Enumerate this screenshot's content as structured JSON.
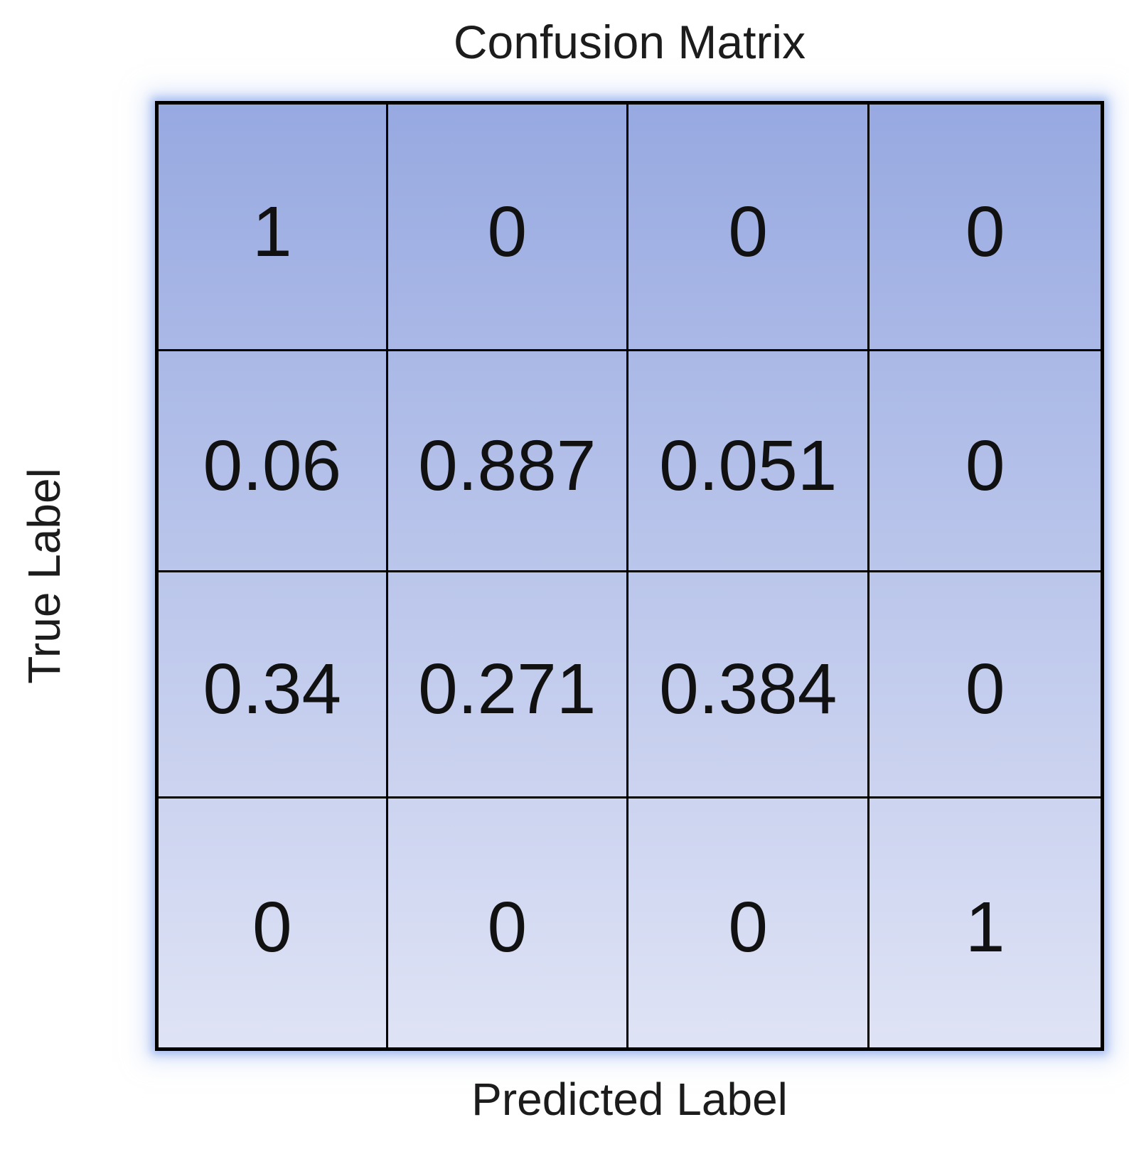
{
  "chart_data": {
    "type": "heatmap",
    "title": "Confusion Matrix",
    "xlabel": "Predicted Label",
    "ylabel": "True Label",
    "rows": 4,
    "cols": 4,
    "matrix": [
      [
        1,
        0,
        0,
        0
      ],
      [
        0.06,
        0.887,
        0.051,
        0
      ],
      [
        0.34,
        0.271,
        0.384,
        0
      ],
      [
        0,
        0,
        0,
        1
      ]
    ],
    "layout": {
      "gradient_direction": "top-to-bottom",
      "legend": "none",
      "axis_tick_labels": "none"
    },
    "colors": {
      "cell_top": "#97a9e1",
      "cell_bottom": "#dfe3f5",
      "grid_line": "#000000",
      "glow": "#b4c6f0",
      "text": "#111111",
      "background": "#ffffff"
    }
  }
}
